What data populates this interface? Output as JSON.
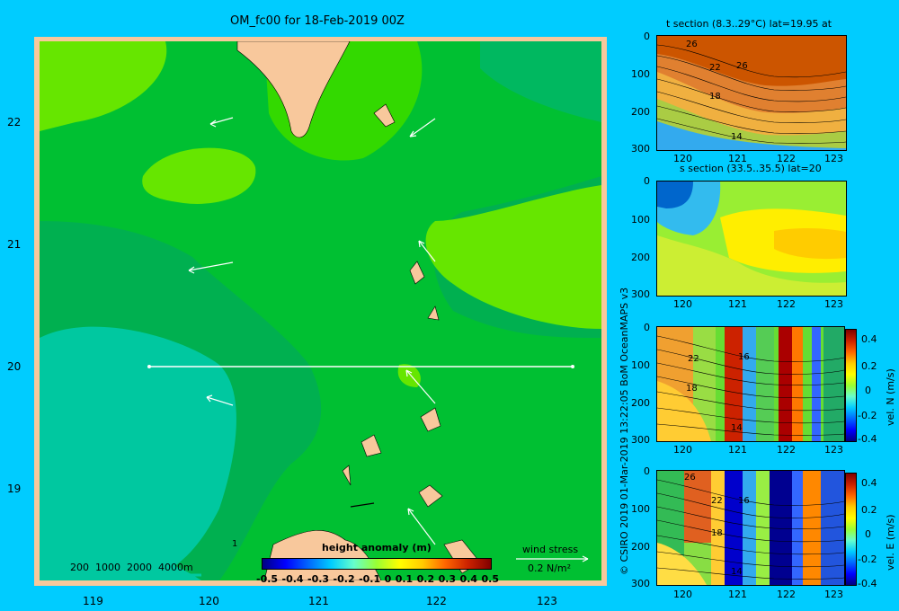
{
  "main_map": {
    "title": "OM_fc00 for 18-Feb-2019 00Z",
    "x_ticks": [
      "119",
      "120",
      "121",
      "122",
      "123"
    ],
    "y_ticks": [
      "22",
      "21",
      "20",
      "19"
    ],
    "depth_legend": "200  1000  2000  4000m",
    "colorbar_title": "height anomaly  (m)",
    "colorbar_ticks": [
      "-0.5",
      "-0.4",
      "-0.3",
      "-0.2",
      "-0.1",
      "0",
      "0.1",
      "0.2",
      "0.3",
      "0.4",
      "0.5"
    ],
    "wind_label": "wind stress",
    "wind_value": "0.2 N/m²",
    "marker": "1"
  },
  "panels": [
    {
      "id": "t_section",
      "title": "t section (8.3..29°C) lat=19.95 at",
      "y_ticks": [
        "0",
        "100",
        "200",
        "300"
      ],
      "x_ticks": [
        "120",
        "121",
        "122",
        "123"
      ],
      "contour_labels": [
        "26",
        "22",
        "26",
        "18",
        "14"
      ]
    },
    {
      "id": "s_section",
      "title": "s section (33.5..35.5) lat=20",
      "y_ticks": [
        "0",
        "100",
        "200",
        "300"
      ],
      "x_ticks": [
        "120",
        "121",
        "122",
        "123"
      ],
      "contour_labels": []
    },
    {
      "id": "vel_n",
      "title": "",
      "y_ticks": [
        "0",
        "100",
        "200",
        "300"
      ],
      "x_ticks": [
        "120",
        "121",
        "122",
        "123"
      ],
      "contour_labels": [
        "22",
        "16",
        "18",
        "14"
      ],
      "colorbar_ticks": [
        "0.4",
        "0.2",
        "0",
        "-0.2",
        "-0.4"
      ],
      "colorbar_label": "vel. N  (m/s)"
    },
    {
      "id": "vel_e",
      "title": "",
      "y_ticks": [
        "0",
        "100",
        "200",
        "300"
      ],
      "x_ticks": [
        "120",
        "121",
        "122",
        "123"
      ],
      "contour_labels": [
        "26",
        "22",
        "16",
        "18",
        "14"
      ],
      "colorbar_ticks": [
        "0.4",
        "0.2",
        "0",
        "-0.2",
        "-0.4"
      ],
      "colorbar_label": "vel. E  (m/s)"
    }
  ],
  "credit": "© CSIRO 2019   01-Mar-2019 13:22:05 BoM OceanMAPS v3",
  "colors": {
    "background": "#00ccff",
    "land": "#f8c89c",
    "height_light": "#66e600",
    "height_mid": "#00cc33",
    "height_dark": "#00b050",
    "height_teal": "#00c8a0"
  }
}
